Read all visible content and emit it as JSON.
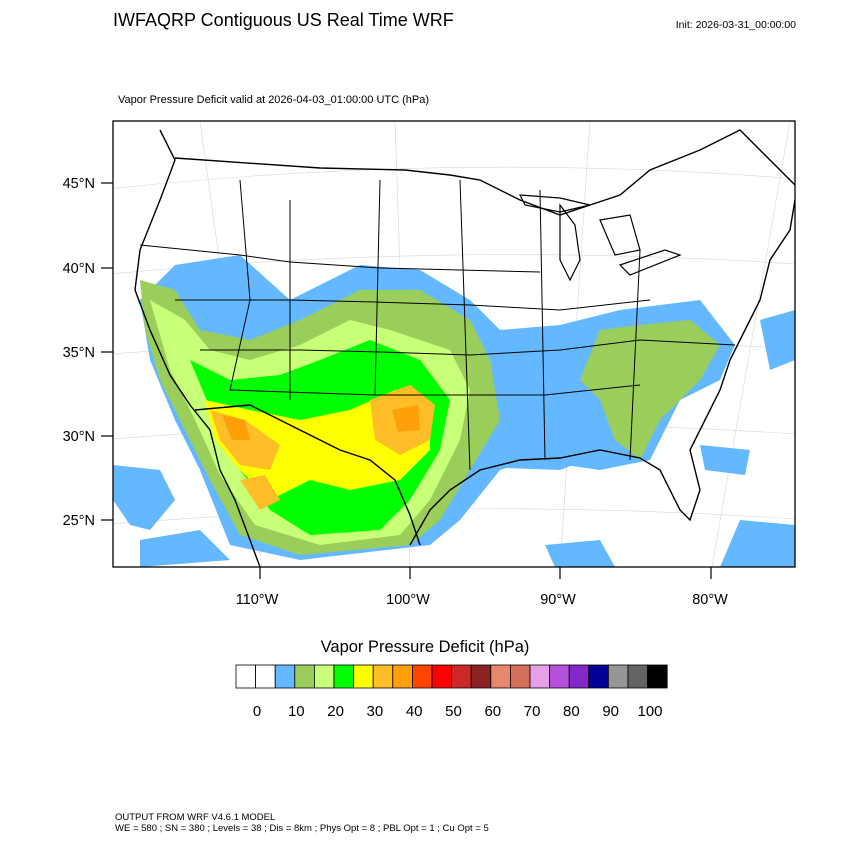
{
  "header": {
    "title": "IWFAQRP Contiguous US Real Time WRF",
    "init": "Init: 2026-03-31_00:00:00",
    "subtitle": "Vapor Pressure Deficit valid at 2026-04-03_01:00:00 UTC   (hPa)"
  },
  "map": {
    "lat_labels": [
      "45°N",
      "40°N",
      "35°N",
      "30°N",
      "25°N"
    ],
    "lon_labels": [
      "110°W",
      "100°W",
      "90°W",
      "80°W"
    ],
    "ocean_color": "#ffffff",
    "land_color": "#ffffff",
    "border_color": "#000000",
    "grid": true,
    "projection": "lambert-conformal"
  },
  "colorbar": {
    "title": "Vapor Pressure Deficit  (hPa)",
    "labels": [
      "0",
      "10",
      "20",
      "30",
      "40",
      "50",
      "60",
      "70",
      "80",
      "90",
      "100"
    ],
    "colors": [
      "#ffffff",
      "#ffffff",
      "#63b8ff",
      "#9bcd5a",
      "#c8ff78",
      "#00ff00",
      "#ffff00",
      "#ffbe28",
      "#ffa00a",
      "#ff4500",
      "#ff0000",
      "#cd2828",
      "#8b2323",
      "#e9866e",
      "#d2705a",
      "#e6a0e6",
      "#b450dc",
      "#8228c8",
      "#000096",
      "#969696",
      "#646464",
      "#000000"
    ]
  },
  "footer": {
    "line1": "OUTPUT FROM WRF V4.6.1 MODEL",
    "line2": "WE = 580 ; SN = 380 ; Levels = 38 ; Dis = 8km ; Phys Opt = 8 ; PBL Opt = 1 ; Cu Opt = 5"
  }
}
